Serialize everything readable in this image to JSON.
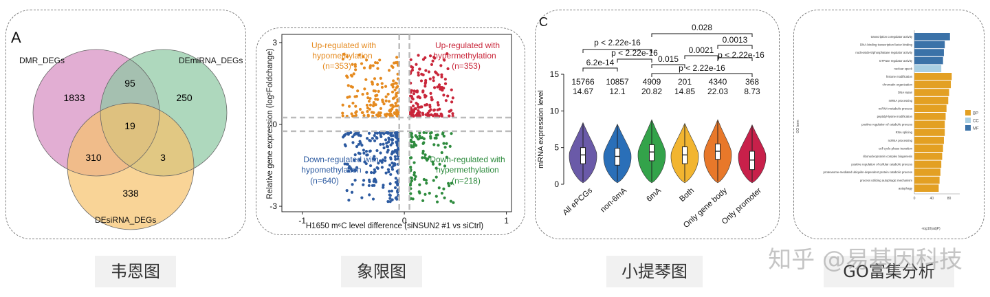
{
  "captions": [
    "韦恩图",
    "象限图",
    "小提琴图",
    "GO富集分析"
  ],
  "watermark": "知乎 @易基因科技",
  "chart_data": [
    {
      "type": "venn",
      "panel_letter": "A",
      "sets": [
        {
          "name": "DMR_DEGs",
          "color": "#d58cc0"
        },
        {
          "name": "DEmiRNA_DEGs",
          "color": "#8cc7a1"
        },
        {
          "name": "DEsiRNA_DEGs",
          "color": "#f6c26b"
        }
      ],
      "regions": [
        {
          "label": "DMR only",
          "value": 1833
        },
        {
          "label": "DMR & DEmiRNA",
          "value": 95
        },
        {
          "label": "DEmiRNA only",
          "value": 250
        },
        {
          "label": "all three",
          "value": 19
        },
        {
          "label": "DMR & DEsiRNA",
          "value": 310
        },
        {
          "label": "DEmiRNA & DEsiRNA",
          "value": 3
        },
        {
          "label": "DEsiRNA only",
          "value": 338
        }
      ]
    },
    {
      "type": "scatter",
      "xlabel": "H1650 m⁶C level difference (siNSUN2 #1  vs  siCtrl)",
      "ylabel": "Relative gene expression (log²Foldchange)",
      "xlim": [
        -1.2,
        1.05
      ],
      "ylim": [
        -3.2,
        3.3
      ],
      "xticks": [
        "-1",
        "0",
        "1"
      ],
      "yticks": [
        "3",
        "0",
        "-3"
      ],
      "quadrants": [
        {
          "line1": "Up-regulated with",
          "line2": "hypomethylation",
          "count": "(n=353)",
          "color": "#e58a1f"
        },
        {
          "line1": "Up-regulated with",
          "line2": "hypermethylation",
          "count": "(n=353)",
          "color": "#c9263a"
        },
        {
          "line1": "Down-regulated with",
          "line2": "hypomethylation",
          "count": "(n=640)",
          "color": "#2c5aa0"
        },
        {
          "line1": "Down-regulated with",
          "line2": "hypermethylation",
          "count": "(n=218)",
          "color": "#2e8b3e"
        }
      ]
    },
    {
      "type": "violin",
      "panel_letter": "C",
      "ylabel": "mRNA expression level",
      "ylim": [
        0,
        15
      ],
      "yticks": [
        "15",
        "10",
        "5",
        "0"
      ],
      "categories": [
        "All ePCGs",
        "non-6mA",
        "6mA",
        "Both",
        "Only gene body",
        "Only promoter"
      ],
      "counts": [
        "15766",
        "10857",
        "4909",
        "201",
        "4340",
        "368"
      ],
      "medians_label": [
        "14.67",
        "12.1",
        "20.82",
        "14.85",
        "22.03",
        "8.73"
      ],
      "colors": [
        "#6a5aa8",
        "#2a6fb8",
        "#33a34a",
        "#f2b530",
        "#e8782a",
        "#c8204a"
      ],
      "box_median": [
        4.0,
        3.8,
        4.4,
        4.0,
        4.5,
        3.3
      ],
      "q1": [
        2.8,
        2.6,
        3.2,
        2.8,
        3.4,
        2.0
      ],
      "q3": [
        5.0,
        4.9,
        5.4,
        5.1,
        5.5,
        4.5
      ],
      "whisker_top": [
        8.4,
        8.2,
        8.8,
        8.3,
        8.8,
        8.1
      ],
      "brackets": [
        {
          "label": "6.2e-14"
        },
        {
          "label": "p < 2.22e-16"
        },
        {
          "label": "p < 2.22e-16"
        },
        {
          "label": "0.028"
        },
        {
          "label": "0.0013"
        },
        {
          "label": "0.0021"
        },
        {
          "label": "p < 2.22e-16"
        },
        {
          "label": "0.015"
        },
        {
          "label": "p < 2.22e-16"
        }
      ]
    },
    {
      "type": "bar",
      "orientation": "horizontal",
      "ylabel": "GO term",
      "xlabel": "-log10(adjP)",
      "xticks": [
        "0",
        "40",
        "80"
      ],
      "legend": [
        {
          "name": "BP",
          "color": "#e3a023"
        },
        {
          "name": "CC",
          "color": "#a9cfe3"
        },
        {
          "name": "MF",
          "color": "#3b72a8"
        }
      ],
      "terms": [
        "transcription coregulator activity",
        "DNA-binding transcription factor binding",
        "nucleoside-triphosphatase regulator activity",
        "GTPase regulator activity",
        "nuclear speck",
        "histone modification",
        "chromatin organization",
        "DNA repair",
        "mRNA processing",
        "ncRNA metabolic process",
        "peptidyl-lysine modification",
        "positive regulation of catabolic process",
        "RNA splicing",
        "ncRNA processing",
        "cell cycle phase transition",
        "ribonucleoprotein complex biogenesis",
        "positive regulation of cellular catabolic process",
        "proteasome-mediated ubiquitin-dependent protein catabolic process",
        "process utilizing autophagic mechanism",
        "autophagy"
      ],
      "categories": [
        "MF",
        "MF",
        "MF",
        "MF",
        "CC",
        "BP",
        "BP",
        "BP",
        "BP",
        "BP",
        "BP",
        "BP",
        "BP",
        "BP",
        "BP",
        "BP",
        "BP",
        "BP",
        "BP",
        "BP"
      ],
      "values": [
        82,
        70,
        68,
        66,
        62,
        86,
        84,
        80,
        78,
        74,
        72,
        70,
        70,
        68,
        66,
        64,
        62,
        60,
        58,
        56
      ],
      "xmax": 95
    }
  ]
}
